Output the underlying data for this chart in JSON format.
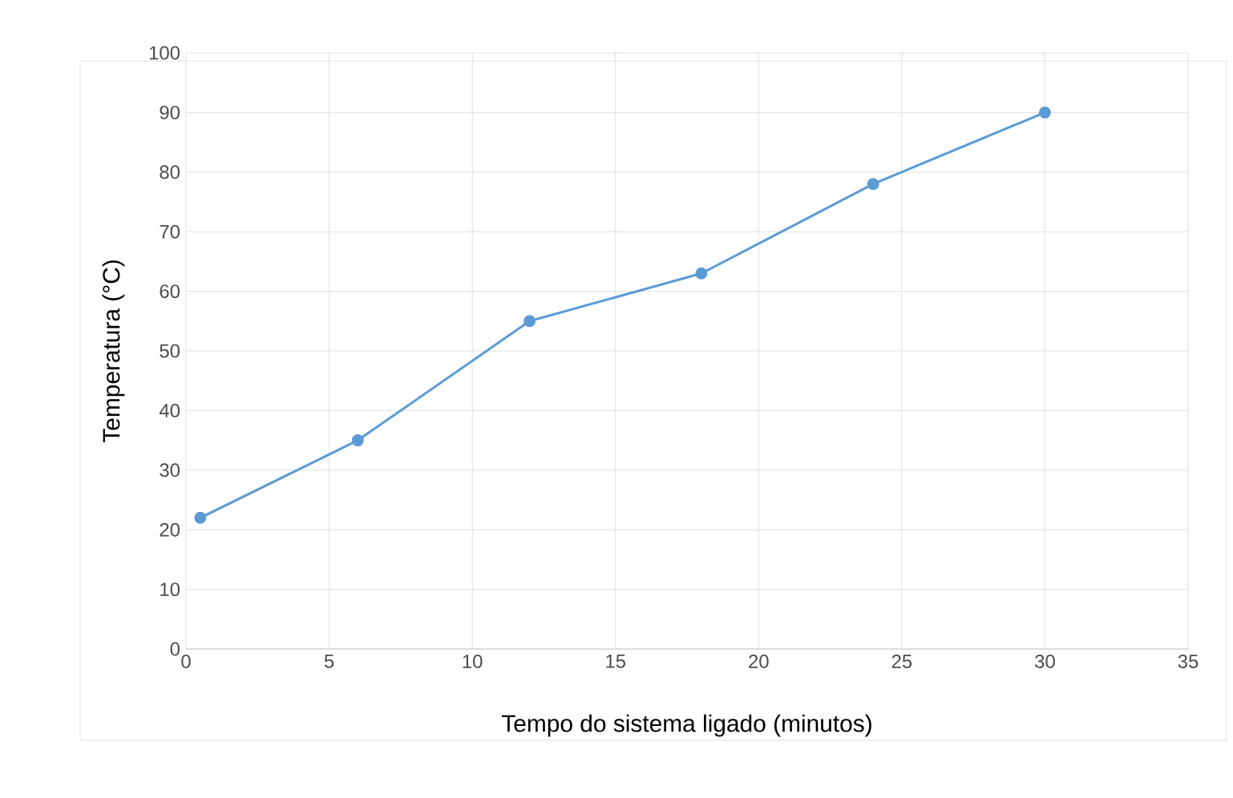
{
  "chart_data": {
    "type": "line",
    "xlabel": "Tempo do sistema ligado (minutos)",
    "ylabel": "Temperatura (°C)",
    "x": [
      0.5,
      6,
      12,
      18,
      24,
      30
    ],
    "series": [
      {
        "color": "#5b9bd5",
        "values": [
          22,
          35,
          55,
          63,
          78,
          90
        ]
      }
    ],
    "xlim": [
      0,
      35
    ],
    "xticks": [
      0,
      5,
      10,
      15,
      20,
      25,
      30,
      35
    ],
    "ylim": [
      0,
      100
    ],
    "yticks": [
      0,
      10,
      20,
      30,
      40,
      50,
      60,
      70,
      80,
      90,
      100
    ],
    "grid": true,
    "marker": "circle",
    "line_style": "solid"
  }
}
